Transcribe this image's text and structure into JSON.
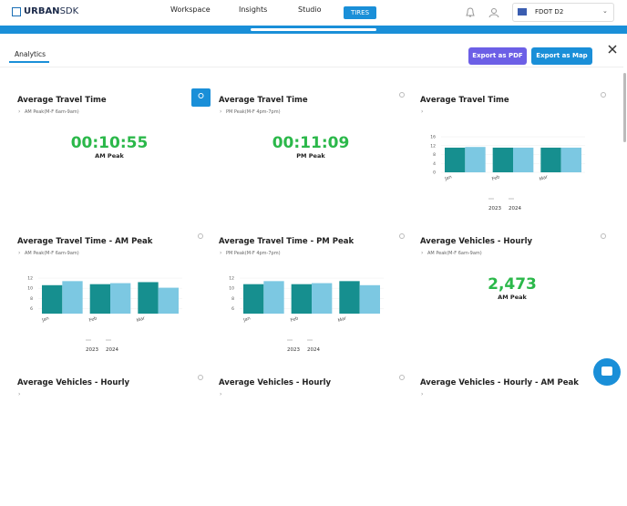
{
  "nav": {
    "logo": "URBAN",
    "logo_suffix": "SDK",
    "items": [
      "Workspace",
      "Insights",
      "Studio",
      "TIRES"
    ],
    "org": "FDOT D2"
  },
  "panel": {
    "tab": "Analytics",
    "buttons": [
      "Export as PDF",
      "Export as Map"
    ]
  },
  "cards": [
    {
      "title": "Average Travel Time",
      "subtitle": "AM Peak(M-F 6am-9am)",
      "metric": {
        "value": "00:10:55",
        "label": "AM Peak"
      }
    },
    {
      "title": "Average Travel Time",
      "subtitle": "PM Peak(M-F 4pm-7pm)",
      "metric": {
        "value": "00:11:09",
        "label": "PM Peak"
      }
    },
    {
      "title": "Average Travel Time",
      "chart": {
        "type": "bar",
        "categories": [
          "Jan",
          "Feb",
          "Mar"
        ],
        "series": [
          {
            "name": "2023",
            "color": "#168f8f",
            "values": [
              11.1,
              11.1,
              11.1
            ]
          },
          {
            "name": "2024",
            "color": "#7cc8e2",
            "values": [
              11.4,
              11.1,
              11.1
            ]
          }
        ],
        "ylim": [
          0,
          16
        ],
        "yticks": [
          0,
          4,
          8,
          12,
          16
        ]
      }
    },
    {
      "title": "Average Travel Time - AM Peak",
      "subtitle": "AM Peak(M-F 6am-9am)",
      "chart": {
        "type": "bar",
        "categories": [
          "Jan",
          "Feb",
          "Mar"
        ],
        "series": [
          {
            "name": "2023",
            "color": "#168f8f",
            "values": [
              10.6,
              10.8,
              11.2
            ]
          },
          {
            "name": "2024",
            "color": "#7cc8e2",
            "values": [
              11.4,
              11.0,
              10.1
            ]
          }
        ],
        "ylim": [
          5,
          12
        ],
        "yticks": [
          6,
          8,
          10,
          12
        ]
      }
    },
    {
      "title": "Average Travel Time - PM Peak",
      "subtitle": "PM Peak(M-F 4pm-7pm)",
      "chart": {
        "type": "bar",
        "categories": [
          "Jan",
          "Feb",
          "Mar"
        ],
        "series": [
          {
            "name": "2023",
            "color": "#168f8f",
            "values": [
              10.8,
              10.8,
              11.4
            ]
          },
          {
            "name": "2024",
            "color": "#7cc8e2",
            "values": [
              11.4,
              11.0,
              10.6
            ]
          }
        ],
        "ylim": [
          5,
          12
        ],
        "yticks": [
          6,
          8,
          10,
          12
        ]
      }
    },
    {
      "title": "Average Vehicles - Hourly",
      "subtitle": "AM Peak(M-F 6am-9am)",
      "metric": {
        "value": "2,473",
        "label": "AM Peak"
      }
    },
    {
      "title": "Average Vehicles - Hourly"
    },
    {
      "title": "Average Vehicles - Hourly"
    },
    {
      "title": "Average Vehicles - Hourly - AM Peak"
    }
  ]
}
